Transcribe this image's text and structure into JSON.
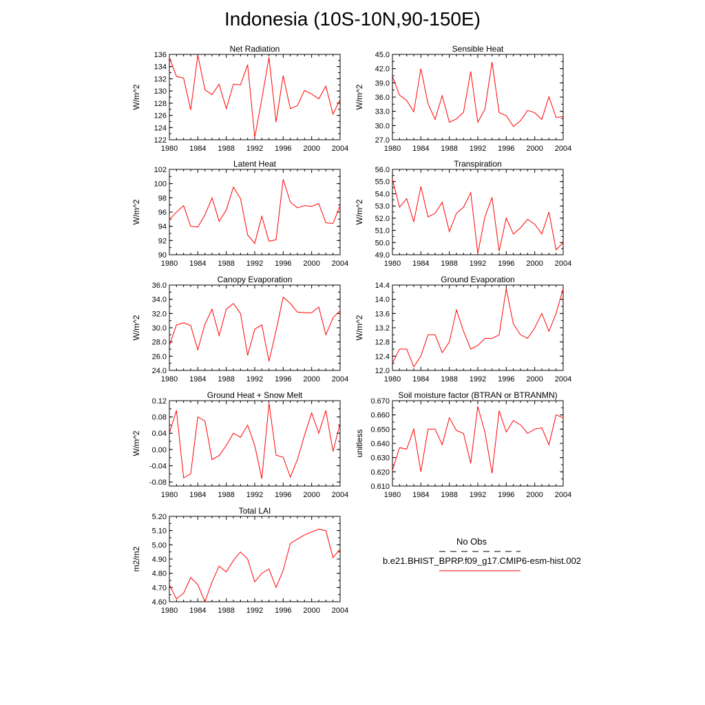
{
  "title": "Indonesia (10S-10N,90-150E)",
  "colors": {
    "series": "#ff0000",
    "axis": "#000000",
    "obs": "#000000"
  },
  "legend": {
    "obs_label": "No Obs",
    "run_label": "b.e21.BHIST_BPRP.f09_g17.CMIP6-esm-hist.002"
  },
  "chart_data": [
    {
      "type": "line",
      "title": "Net Radiation",
      "xlabel": "",
      "ylabel": "W/m^2",
      "xlim": [
        1980,
        2004
      ],
      "ylim": [
        122,
        136
      ],
      "xticks": [
        "1980",
        "1984",
        "1988",
        "1992",
        "1996",
        "2000",
        "2004"
      ],
      "yticks": [
        "122",
        "124",
        "126",
        "128",
        "130",
        "132",
        "134",
        "136"
      ],
      "x": [
        1980,
        1981,
        1982,
        1983,
        1984,
        1985,
        1986,
        1987,
        1988,
        1989,
        1990,
        1991,
        1992,
        1993,
        1994,
        1995,
        1996,
        1997,
        1998,
        1999,
        2000,
        2001,
        2002,
        2003,
        2004
      ],
      "series": [
        {
          "name": "b.e21.BHIST_BPRP.f09_g17.CMIP6-esm-hist.002",
          "values": [
            135.5,
            132.4,
            132.1,
            126.9,
            135.9,
            130.2,
            129.4,
            131.1,
            127.1,
            131.1,
            131.0,
            134.3,
            122.4,
            128.7,
            135.5,
            124.9,
            132.5,
            127.1,
            127.6,
            130.1,
            129.5,
            128.7,
            130.8,
            126.2,
            128.6
          ]
        }
      ]
    },
    {
      "type": "line",
      "title": "Sensible Heat",
      "xlabel": "",
      "ylabel": "W/m^2",
      "xlim": [
        1980,
        2004
      ],
      "ylim": [
        27,
        45
      ],
      "xticks": [
        "1980",
        "1984",
        "1988",
        "1992",
        "1996",
        "2000",
        "2004"
      ],
      "yticks": [
        "27.0",
        "30.0",
        "33.0",
        "36.0",
        "39.0",
        "42.0",
        "45.0"
      ],
      "x": [
        1980,
        1981,
        1982,
        1983,
        1984,
        1985,
        1986,
        1987,
        1988,
        1989,
        1990,
        1991,
        1992,
        1993,
        1994,
        1995,
        1996,
        1997,
        1998,
        1999,
        2000,
        2001,
        2002,
        2003,
        2004
      ],
      "series": [
        {
          "name": "b.e21.BHIST_BPRP.f09_g17.CMIP6-esm-hist.002",
          "values": [
            40.4,
            36.4,
            35.3,
            32.9,
            42.0,
            34.6,
            31.3,
            36.3,
            30.7,
            31.4,
            32.8,
            41.4,
            30.7,
            33.4,
            43.4,
            32.7,
            32.1,
            29.8,
            31.0,
            33.2,
            32.7,
            31.3,
            36.1,
            31.7,
            31.9
          ]
        }
      ]
    },
    {
      "type": "line",
      "title": "Latent Heat",
      "xlabel": "",
      "ylabel": "W/m^2",
      "xlim": [
        1980,
        2004
      ],
      "ylim": [
        90,
        102
      ],
      "xticks": [
        "1980",
        "1984",
        "1988",
        "1992",
        "1996",
        "2000",
        "2004"
      ],
      "yticks": [
        "90",
        "92",
        "94",
        "96",
        "98",
        "100",
        "102"
      ],
      "x": [
        1980,
        1981,
        1982,
        1983,
        1984,
        1985,
        1986,
        1987,
        1988,
        1989,
        1990,
        1991,
        1992,
        1993,
        1994,
        1995,
        1996,
        1997,
        1998,
        1999,
        2000,
        2001,
        2002,
        2003,
        2004
      ],
      "series": [
        {
          "name": "b.e21.BHIST_BPRP.f09_g17.CMIP6-esm-hist.002",
          "values": [
            94.9,
            96.0,
            96.9,
            94.0,
            93.9,
            95.6,
            98.0,
            94.7,
            96.3,
            99.5,
            97.9,
            92.8,
            91.6,
            95.4,
            91.9,
            92.1,
            100.6,
            97.4,
            96.6,
            96.9,
            96.8,
            97.2,
            94.5,
            94.4,
            96.9
          ]
        }
      ]
    },
    {
      "type": "line",
      "title": "Transpiration",
      "xlabel": "",
      "ylabel": "W/m^2",
      "xlim": [
        1980,
        2004
      ],
      "ylim": [
        49,
        56
      ],
      "xticks": [
        "1980",
        "1984",
        "1988",
        "1992",
        "1996",
        "2000",
        "2004"
      ],
      "yticks": [
        "49.0",
        "50.0",
        "51.0",
        "52.0",
        "53.0",
        "54.0",
        "55.0",
        "56.0"
      ],
      "x": [
        1980,
        1981,
        1982,
        1983,
        1984,
        1985,
        1986,
        1987,
        1988,
        1989,
        1990,
        1991,
        1992,
        1993,
        1994,
        1995,
        1996,
        1997,
        1998,
        1999,
        2000,
        2001,
        2002,
        2003,
        2004
      ],
      "series": [
        {
          "name": "b.e21.BHIST_BPRP.f09_g17.CMIP6-esm-hist.002",
          "values": [
            55.2,
            52.9,
            53.6,
            51.7,
            54.6,
            52.1,
            52.4,
            53.3,
            50.9,
            52.4,
            52.9,
            54.1,
            49.1,
            52.1,
            53.7,
            49.3,
            52.0,
            50.7,
            51.2,
            51.9,
            51.5,
            50.7,
            52.5,
            49.4,
            50.0
          ]
        }
      ]
    },
    {
      "type": "line",
      "title": "Canopy Evaporation",
      "xlabel": "",
      "ylabel": "W/m^2",
      "xlim": [
        1980,
        2004
      ],
      "ylim": [
        24,
        36
      ],
      "xticks": [
        "1980",
        "1984",
        "1988",
        "1992",
        "1996",
        "2000",
        "2004"
      ],
      "yticks": [
        "24.0",
        "26.0",
        "28.0",
        "30.0",
        "32.0",
        "34.0",
        "36.0"
      ],
      "x": [
        1980,
        1981,
        1982,
        1983,
        1984,
        1985,
        1986,
        1987,
        1988,
        1989,
        1990,
        1991,
        1992,
        1993,
        1994,
        1995,
        1996,
        1997,
        1998,
        1999,
        2000,
        2001,
        2002,
        2003,
        2004
      ],
      "series": [
        {
          "name": "b.e21.BHIST_BPRP.f09_g17.CMIP6-esm-hist.002",
          "values": [
            27.5,
            30.4,
            30.7,
            30.3,
            26.9,
            30.5,
            32.6,
            28.9,
            32.6,
            33.4,
            32.0,
            26.1,
            29.8,
            30.4,
            25.3,
            29.6,
            34.3,
            33.4,
            32.2,
            32.1,
            32.1,
            32.9,
            29.0,
            31.4,
            32.4
          ]
        }
      ]
    },
    {
      "type": "line",
      "title": "Ground Evaporation",
      "xlabel": "",
      "ylabel": "W/m^2",
      "xlim": [
        1980,
        2004
      ],
      "ylim": [
        12.0,
        14.4
      ],
      "xticks": [
        "1980",
        "1984",
        "1988",
        "1992",
        "1996",
        "2000",
        "2004"
      ],
      "yticks": [
        "12.0",
        "12.4",
        "12.8",
        "13.2",
        "13.6",
        "14.0",
        "14.4"
      ],
      "x": [
        1980,
        1981,
        1982,
        1983,
        1984,
        1985,
        1986,
        1987,
        1988,
        1989,
        1990,
        1991,
        1992,
        1993,
        1994,
        1995,
        1996,
        1997,
        1998,
        1999,
        2000,
        2001,
        2002,
        2003,
        2004
      ],
      "series": [
        {
          "name": "b.e21.BHIST_BPRP.f09_g17.CMIP6-esm-hist.002",
          "values": [
            12.2,
            12.6,
            12.6,
            12.1,
            12.4,
            13.0,
            13.0,
            12.5,
            12.8,
            13.7,
            13.1,
            12.6,
            12.7,
            12.9,
            12.9,
            13.0,
            14.3,
            13.3,
            13.0,
            12.9,
            13.2,
            13.6,
            13.1,
            13.6,
            14.3
          ]
        }
      ]
    },
    {
      "type": "line",
      "title": "Ground Heat + Snow Melt",
      "xlabel": "",
      "ylabel": "W/m^2",
      "xlim": [
        1980,
        2004
      ],
      "ylim": [
        -0.09,
        0.12
      ],
      "xticks": [
        "1980",
        "1984",
        "1988",
        "1992",
        "1996",
        "2000",
        "2004"
      ],
      "yticks": [
        "-0.08",
        "-0.04",
        "0.00",
        "0.04",
        "0.08",
        "0.12"
      ],
      "x": [
        1980,
        1981,
        1982,
        1983,
        1984,
        1985,
        1986,
        1987,
        1988,
        1989,
        1990,
        1991,
        1992,
        1993,
        1994,
        1995,
        1996,
        1997,
        1998,
        1999,
        2000,
        2001,
        2002,
        2003,
        2004
      ],
      "series": [
        {
          "name": "b.e21.BHIST_BPRP.f09_g17.CMIP6-esm-hist.002",
          "values": [
            0.04,
            0.096,
            -0.07,
            -0.06,
            0.08,
            0.07,
            -0.025,
            -0.015,
            0.01,
            0.04,
            0.03,
            0.06,
            0.01,
            -0.072,
            0.114,
            -0.014,
            -0.019,
            -0.068,
            -0.025,
            0.035,
            0.09,
            0.04,
            0.096,
            -0.005,
            0.065
          ]
        }
      ]
    },
    {
      "type": "line",
      "title": "Soil moisture factor (BTRAN or BTRANMN)",
      "xlabel": "",
      "ylabel": "unitless",
      "xlim": [
        1980,
        2004
      ],
      "ylim": [
        0.61,
        0.67
      ],
      "xticks": [
        "1980",
        "1984",
        "1988",
        "1992",
        "1996",
        "2000",
        "2004"
      ],
      "yticks": [
        "0.610",
        "0.620",
        "0.630",
        "0.640",
        "0.650",
        "0.660",
        "0.670"
      ],
      "x": [
        1980,
        1981,
        1982,
        1983,
        1984,
        1985,
        1986,
        1987,
        1988,
        1989,
        1990,
        1991,
        1992,
        1993,
        1994,
        1995,
        1996,
        1997,
        1998,
        1999,
        2000,
        2001,
        2002,
        2003,
        2004
      ],
      "series": [
        {
          "name": "b.e21.BHIST_BPRP.f09_g17.CMIP6-esm-hist.002",
          "values": [
            0.621,
            0.637,
            0.636,
            0.65,
            0.62,
            0.65,
            0.65,
            0.639,
            0.658,
            0.649,
            0.647,
            0.626,
            0.666,
            0.648,
            0.619,
            0.663,
            0.648,
            0.656,
            0.653,
            0.647,
            0.65,
            0.651,
            0.639,
            0.66,
            0.658
          ]
        }
      ]
    },
    {
      "type": "line",
      "title": "Total LAI",
      "xlabel": "",
      "ylabel": "m2/m2",
      "xlim": [
        1980,
        2004
      ],
      "ylim": [
        4.6,
        5.2
      ],
      "xticks": [
        "1980",
        "1984",
        "1988",
        "1992",
        "1996",
        "2000",
        "2004"
      ],
      "yticks": [
        "4.60",
        "4.70",
        "4.80",
        "4.90",
        "5.00",
        "5.10",
        "5.20"
      ],
      "x": [
        1980,
        1981,
        1982,
        1983,
        1984,
        1985,
        1986,
        1987,
        1988,
        1989,
        1990,
        1991,
        1992,
        1993,
        1994,
        1995,
        1996,
        1997,
        1998,
        1999,
        2000,
        2001,
        2002,
        2003,
        2004
      ],
      "series": [
        {
          "name": "b.e21.BHIST_BPRP.f09_g17.CMIP6-esm-hist.002",
          "values": [
            4.72,
            4.62,
            4.66,
            4.77,
            4.72,
            4.6,
            4.74,
            4.85,
            4.81,
            4.89,
            4.95,
            4.9,
            4.74,
            4.8,
            4.83,
            4.7,
            4.82,
            5.01,
            5.04,
            5.07,
            5.09,
            5.11,
            5.1,
            4.91,
            4.97
          ]
        }
      ]
    }
  ]
}
